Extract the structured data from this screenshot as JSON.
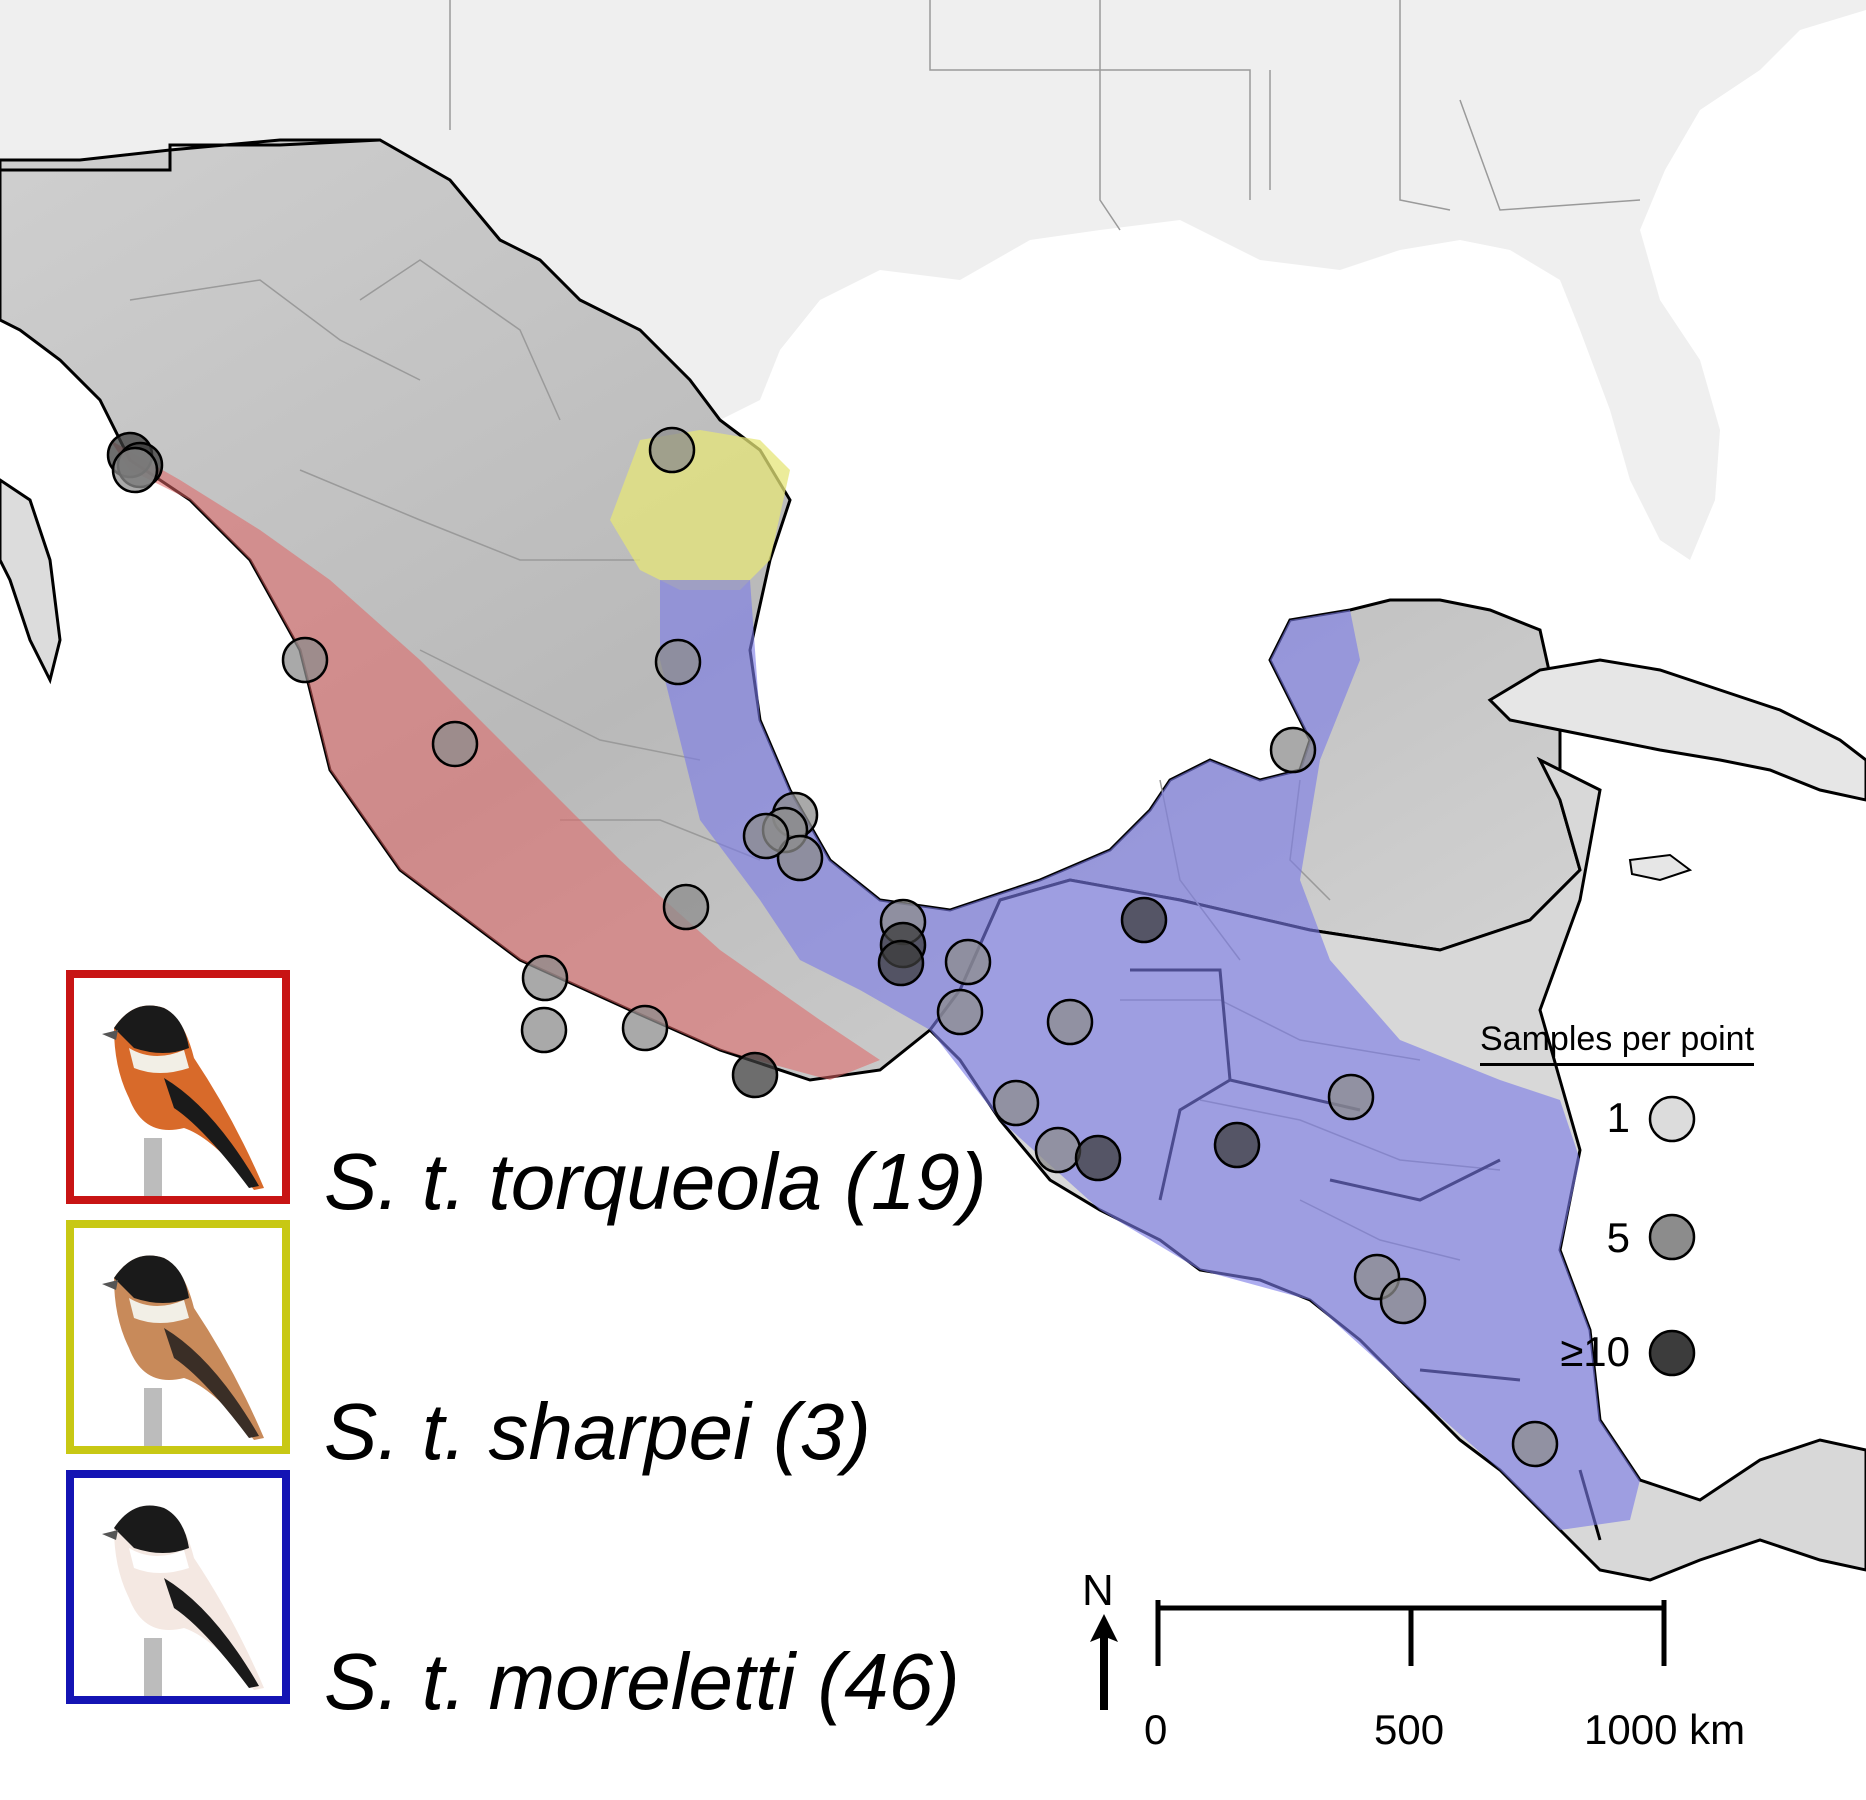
{
  "taxa": [
    {
      "label": "S. t. torqueola (19)",
      "color": "#c81414"
    },
    {
      "label": "S. t. sharpei (3)",
      "color": "#c8c814"
    },
    {
      "label": "S. t. moreletti (46)",
      "color": "#1414b4"
    }
  ],
  "range_colors": {
    "torqueola": "#e06464",
    "sharpei": "#e6e678",
    "moreletti": "#7a7ae6"
  },
  "samples_legend": {
    "title": "Samples per point",
    "items": [
      {
        "label": "1",
        "fill": "#dcdcdc"
      },
      {
        "label": "5",
        "fill": "#8c8c8c"
      },
      {
        "label": "≥10",
        "fill": "#3c3c3c"
      }
    ]
  },
  "scale_bar": {
    "ticks": [
      "0",
      "500",
      "1000 km"
    ]
  },
  "north_arrow": {
    "label": "N"
  }
}
